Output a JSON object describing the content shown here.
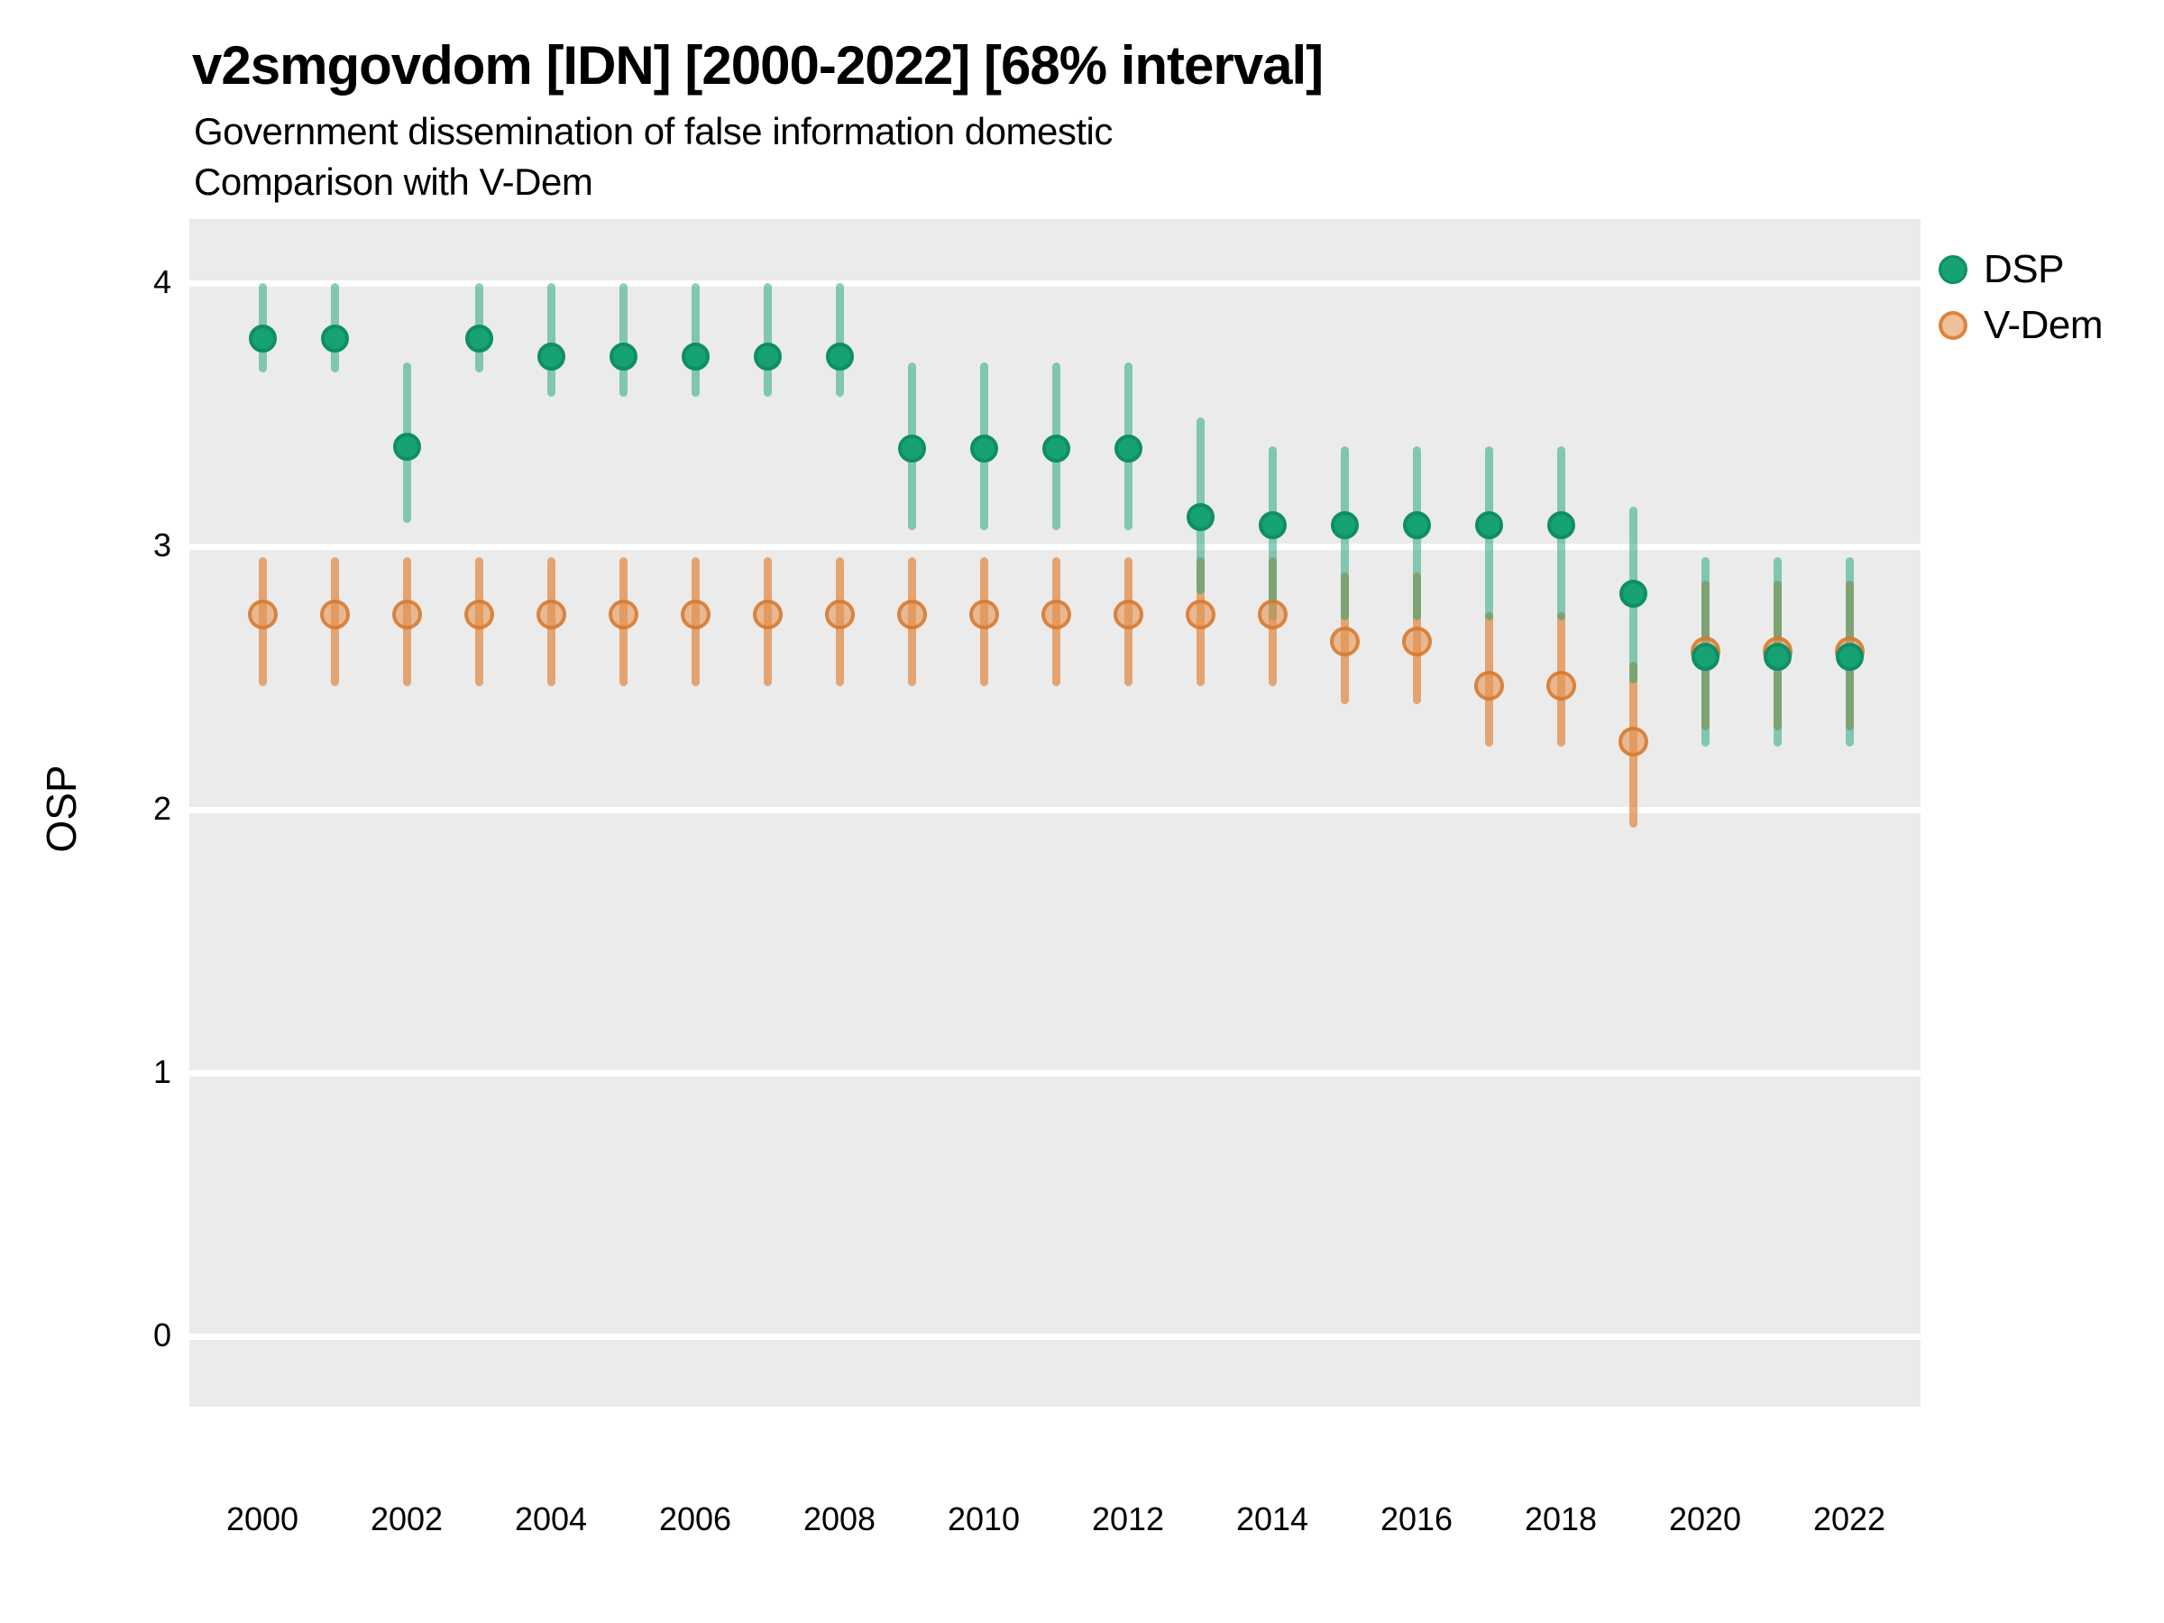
{
  "title": "v2smgovdom [IDN] [2000-2022] [68% interval]",
  "subtitle1": "Government dissemination of false information domestic",
  "subtitle2": "Comparison with V-Dem",
  "y_axis_title": "OSP",
  "legend": {
    "items": [
      {
        "label": "DSP",
        "color": "#17a273"
      },
      {
        "label": "V-Dem",
        "color": "#e0863e"
      }
    ],
    "position": "right"
  },
  "panel": {
    "background": "#ebebeb",
    "gridline_color": "#ffffff"
  },
  "chart_data": {
    "type": "scatter",
    "title": "v2smgovdom [IDN] [2000-2022] [68% interval]",
    "subtitle": "Government dissemination of false information domestic — Comparison with V-Dem",
    "xlabel": "",
    "ylabel": "OSP",
    "interval": "68%",
    "grid": true,
    "legend_position": "right",
    "ylim": [
      -0.27,
      4.24
    ],
    "yticks": [
      0,
      1,
      2,
      3,
      4
    ],
    "y_tick_labels": [
      "0",
      "1",
      "2",
      "3",
      "4"
    ],
    "x": [
      2000,
      2001,
      2002,
      2003,
      2004,
      2005,
      2006,
      2007,
      2008,
      2009,
      2010,
      2011,
      2012,
      2013,
      2014,
      2015,
      2016,
      2017,
      2018,
      2019,
      2020,
      2021,
      2022
    ],
    "x_tick_years": [
      2000,
      2002,
      2004,
      2006,
      2008,
      2010,
      2012,
      2014,
      2016,
      2018,
      2020,
      2022
    ],
    "x_tick_labels": [
      "2000",
      "2002",
      "2004",
      "2006",
      "2008",
      "2010",
      "2012",
      "2014",
      "2016",
      "2018",
      "2020",
      "2022"
    ],
    "series": [
      {
        "name": "DSP",
        "color": "#17a273",
        "values": [
          3.79,
          3.79,
          3.38,
          3.79,
          3.72,
          3.72,
          3.72,
          3.72,
          3.72,
          3.37,
          3.37,
          3.37,
          3.37,
          3.11,
          3.08,
          3.08,
          3.08,
          3.08,
          3.08,
          2.82,
          2.58,
          2.58,
          2.58
        ],
        "lower": [
          3.66,
          3.66,
          3.09,
          3.66,
          3.57,
          3.57,
          3.57,
          3.57,
          3.57,
          3.06,
          3.06,
          3.06,
          3.06,
          2.82,
          2.72,
          2.72,
          2.72,
          2.72,
          2.72,
          2.48,
          2.24,
          2.24,
          2.24
        ],
        "upper": [
          4.0,
          4.0,
          3.7,
          4.0,
          4.0,
          4.0,
          4.0,
          4.0,
          4.0,
          3.7,
          3.7,
          3.7,
          3.7,
          3.49,
          3.38,
          3.38,
          3.38,
          3.38,
          3.38,
          3.15,
          2.96,
          2.96,
          2.96
        ]
      },
      {
        "name": "V-Dem",
        "color": "#e0863e",
        "values": [
          2.74,
          2.74,
          2.74,
          2.74,
          2.74,
          2.74,
          2.74,
          2.74,
          2.74,
          2.74,
          2.74,
          2.74,
          2.74,
          2.74,
          2.74,
          2.64,
          2.64,
          2.47,
          2.47,
          2.26,
          2.6,
          2.6,
          2.6
        ],
        "lower": [
          2.47,
          2.47,
          2.47,
          2.47,
          2.47,
          2.47,
          2.47,
          2.47,
          2.47,
          2.47,
          2.47,
          2.47,
          2.47,
          2.47,
          2.47,
          2.4,
          2.4,
          2.24,
          2.24,
          1.93,
          2.3,
          2.3,
          2.3
        ],
        "upper": [
          2.96,
          2.96,
          2.96,
          2.96,
          2.96,
          2.96,
          2.96,
          2.96,
          2.96,
          2.96,
          2.96,
          2.96,
          2.96,
          2.96,
          2.96,
          2.9,
          2.9,
          2.75,
          2.75,
          2.56,
          2.87,
          2.87,
          2.87
        ]
      }
    ]
  }
}
